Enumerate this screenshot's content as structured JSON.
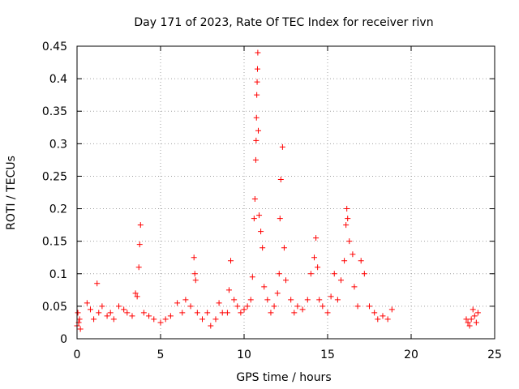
{
  "chart_data": {
    "type": "scatter",
    "title": "Day 171 of 2023, Rate Of TEC Index for receiver rivn",
    "xlabel": "GPS time / hours",
    "ylabel": "ROTI / TECUs",
    "xlim": [
      0,
      25
    ],
    "ylim": [
      0,
      0.45
    ],
    "xticks": [
      "0",
      "5",
      "10",
      "15",
      "20",
      "25"
    ],
    "yticks": [
      "0",
      "0.05",
      "0.1",
      "0.15",
      "0.2",
      "0.25",
      "0.3",
      "0.35",
      "0.4",
      "0.45"
    ],
    "grid": true,
    "marker": "+",
    "color": "#ff0000",
    "series": [
      {
        "x": [
          0.0,
          0.05,
          0.1,
          0.15,
          0.2,
          0.6,
          0.8,
          1.0,
          1.2,
          1.3,
          1.5,
          1.8,
          2.0,
          2.2,
          2.5,
          2.8,
          3.0,
          3.3,
          3.5,
          3.6,
          3.7,
          3.75,
          3.8,
          4.0,
          4.3,
          4.6,
          5.0,
          5.3,
          5.6,
          6.0,
          6.3,
          6.5,
          6.8,
          7.0,
          7.05,
          7.1,
          7.2,
          7.5,
          7.8,
          8.0,
          8.3,
          8.5,
          8.7,
          9.0,
          9.1,
          9.2,
          9.4,
          9.6,
          9.8,
          10.0,
          10.2,
          10.4,
          10.5,
          10.6,
          10.65,
          10.7,
          10.72,
          10.74,
          10.76,
          10.78,
          10.8,
          10.82,
          10.85,
          10.9,
          11.0,
          11.1,
          11.2,
          11.4,
          11.6,
          11.8,
          12.0,
          12.1,
          12.15,
          12.2,
          12.3,
          12.4,
          12.5,
          12.8,
          13.0,
          13.2,
          13.5,
          13.8,
          14.0,
          14.2,
          14.3,
          14.4,
          14.5,
          14.7,
          15.0,
          15.2,
          15.4,
          15.6,
          15.8,
          16.0,
          16.1,
          16.15,
          16.2,
          16.3,
          16.5,
          16.6,
          16.8,
          17.0,
          17.2,
          17.5,
          17.8,
          18.0,
          18.3,
          18.6,
          18.85,
          23.3,
          23.4,
          23.5,
          23.6,
          23.7,
          23.8,
          23.9,
          24.0
        ],
        "y": [
          0.02,
          0.04,
          0.025,
          0.03,
          0.015,
          0.055,
          0.045,
          0.03,
          0.085,
          0.04,
          0.05,
          0.035,
          0.04,
          0.03,
          0.05,
          0.045,
          0.04,
          0.035,
          0.07,
          0.065,
          0.11,
          0.145,
          0.175,
          0.04,
          0.035,
          0.03,
          0.025,
          0.03,
          0.035,
          0.055,
          0.04,
          0.06,
          0.05,
          0.125,
          0.1,
          0.09,
          0.04,
          0.03,
          0.04,
          0.02,
          0.03,
          0.055,
          0.04,
          0.04,
          0.075,
          0.12,
          0.06,
          0.05,
          0.04,
          0.045,
          0.05,
          0.06,
          0.095,
          0.185,
          0.215,
          0.275,
          0.305,
          0.34,
          0.375,
          0.395,
          0.415,
          0.44,
          0.32,
          0.19,
          0.165,
          0.14,
          0.08,
          0.06,
          0.04,
          0.05,
          0.07,
          0.1,
          0.185,
          0.245,
          0.295,
          0.14,
          0.09,
          0.06,
          0.04,
          0.05,
          0.045,
          0.06,
          0.1,
          0.125,
          0.155,
          0.11,
          0.06,
          0.05,
          0.04,
          0.065,
          0.1,
          0.06,
          0.09,
          0.12,
          0.175,
          0.2,
          0.185,
          0.15,
          0.13,
          0.08,
          0.05,
          0.12,
          0.1,
          0.05,
          0.04,
          0.03,
          0.035,
          0.03,
          0.045,
          0.03,
          0.025,
          0.02,
          0.03,
          0.045,
          0.035,
          0.025,
          0.04
        ]
      }
    ]
  }
}
